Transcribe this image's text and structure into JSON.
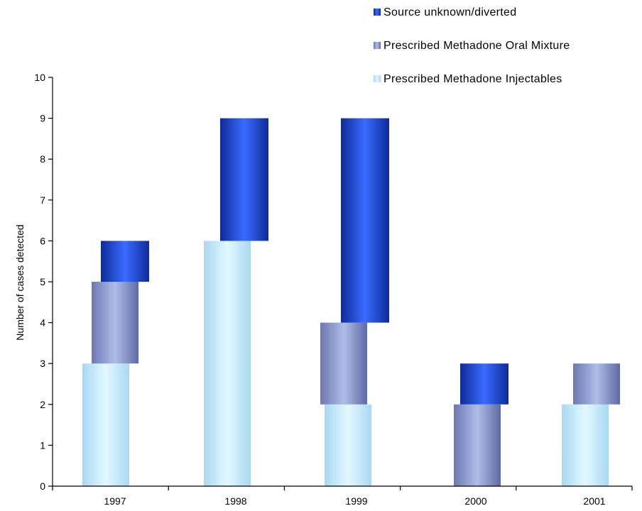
{
  "chart_data": {
    "type": "bar",
    "stacked": false,
    "categories": [
      "1997",
      "1998",
      "1999",
      "2000",
      "2001"
    ],
    "series": [
      {
        "name": "Source unknown/diverted",
        "color": "#2a5cf0",
        "ranges": [
          [
            5,
            6
          ],
          [
            6,
            9
          ],
          [
            4,
            9
          ],
          [
            2,
            3
          ],
          null
        ]
      },
      {
        "name": "Prescribed Methadone Oral Mixture",
        "color": "#8a98cc",
        "ranges": [
          [
            3,
            5
          ],
          null,
          [
            2,
            4
          ],
          [
            0,
            2
          ],
          [
            2,
            3
          ]
        ]
      },
      {
        "name": "Prescribed Methadone Injectables",
        "color": "#c8eefb",
        "ranges": [
          [
            0,
            3
          ],
          [
            0,
            6
          ],
          [
            0,
            2
          ],
          null,
          [
            0,
            2
          ]
        ]
      }
    ],
    "xlabel": "",
    "ylabel": "Number of cases detected",
    "ylim": [
      0,
      10
    ],
    "yticks": [
      "0",
      "1",
      "2",
      "3",
      "4",
      "5",
      "6",
      "7",
      "8",
      "9",
      "10"
    ],
    "legend_position": "top-right",
    "grid": false
  }
}
